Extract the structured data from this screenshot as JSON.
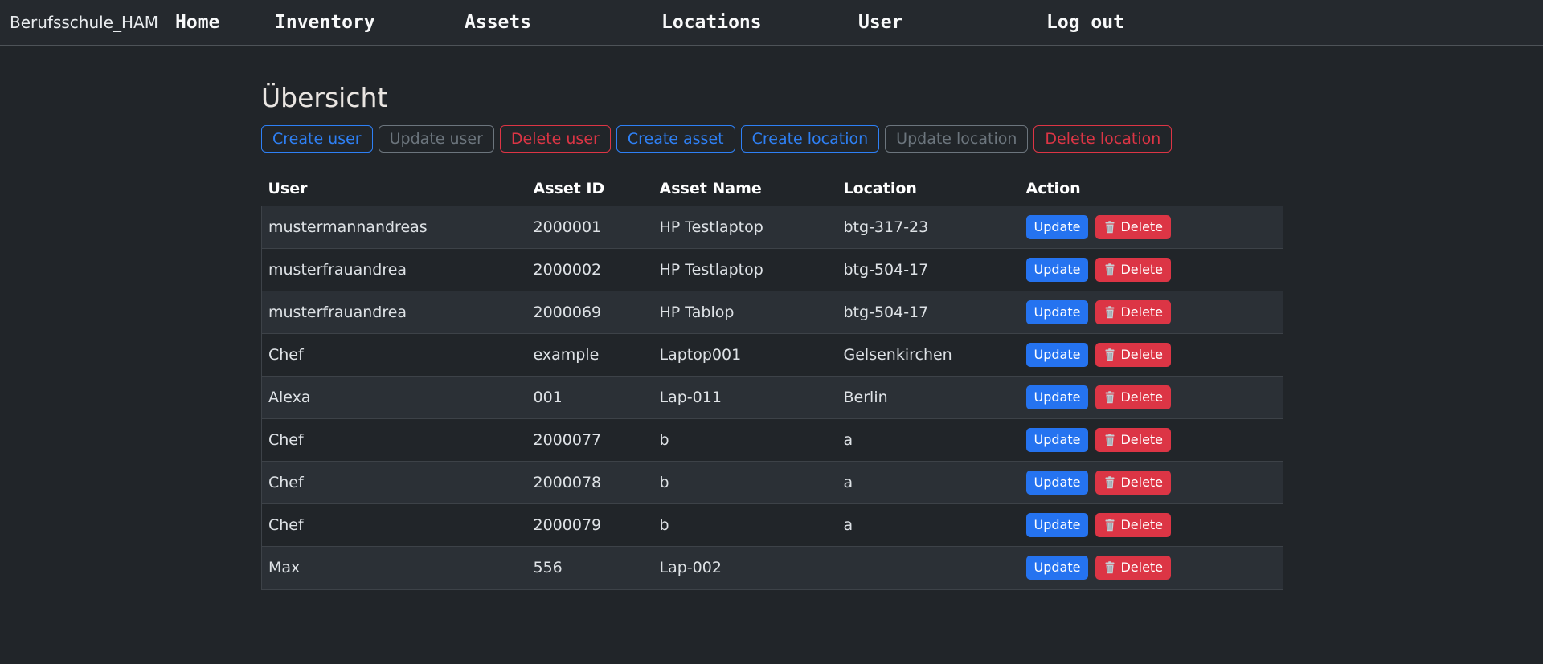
{
  "navbar": {
    "brand": "Berufsschule_HAM",
    "items": [
      {
        "label": "Home"
      },
      {
        "label": "Inventory"
      },
      {
        "label": "Assets"
      },
      {
        "label": "Locations"
      },
      {
        "label": "User"
      },
      {
        "label": "Log out"
      }
    ]
  },
  "page": {
    "title": "Übersicht"
  },
  "toolbar": {
    "buttons": [
      {
        "label": "Create user",
        "variant": "primary"
      },
      {
        "label": "Update user",
        "variant": "secondary"
      },
      {
        "label": "Delete user",
        "variant": "danger"
      },
      {
        "label": "Create asset",
        "variant": "primary"
      },
      {
        "label": "Create location",
        "variant": "primary"
      },
      {
        "label": "Update location",
        "variant": "secondary"
      },
      {
        "label": "Delete location",
        "variant": "danger"
      }
    ]
  },
  "table": {
    "headers": [
      "User",
      "Asset ID",
      "Asset Name",
      "Location",
      "Action"
    ],
    "update_label": "Update",
    "delete_label": "Delete",
    "rows": [
      {
        "user": "mustermannandreas",
        "asset_id": "2000001",
        "asset_name": "HP Testlaptop",
        "location": "btg-317-23"
      },
      {
        "user": "musterfrauandrea",
        "asset_id": "2000002",
        "asset_name": "HP Testlaptop",
        "location": "btg-504-17"
      },
      {
        "user": "musterfrauandrea",
        "asset_id": "2000069",
        "asset_name": "HP Tablop",
        "location": "btg-504-17"
      },
      {
        "user": "Chef",
        "asset_id": "example",
        "asset_name": "Laptop001",
        "location": "Gelsenkirchen"
      },
      {
        "user": "Alexa",
        "asset_id": "001",
        "asset_name": "Lap-011",
        "location": "Berlin"
      },
      {
        "user": "Chef",
        "asset_id": "2000077",
        "asset_name": "b",
        "location": "a"
      },
      {
        "user": "Chef",
        "asset_id": "2000078",
        "asset_name": "b",
        "location": "a"
      },
      {
        "user": "Chef",
        "asset_id": "2000079",
        "asset_name": "b",
        "location": "a"
      },
      {
        "user": "Max",
        "asset_id": "556",
        "asset_name": "Lap-002",
        "location": ""
      }
    ]
  },
  "colors": {
    "body_bg": "#212529",
    "navbar_bg": "#25292e",
    "stripe_bg": "#2b3036",
    "primary_blue": "#2573f0",
    "outline_blue": "#2e80f5",
    "danger_red": "#dc3545",
    "secondary_gray": "#6c757d"
  }
}
